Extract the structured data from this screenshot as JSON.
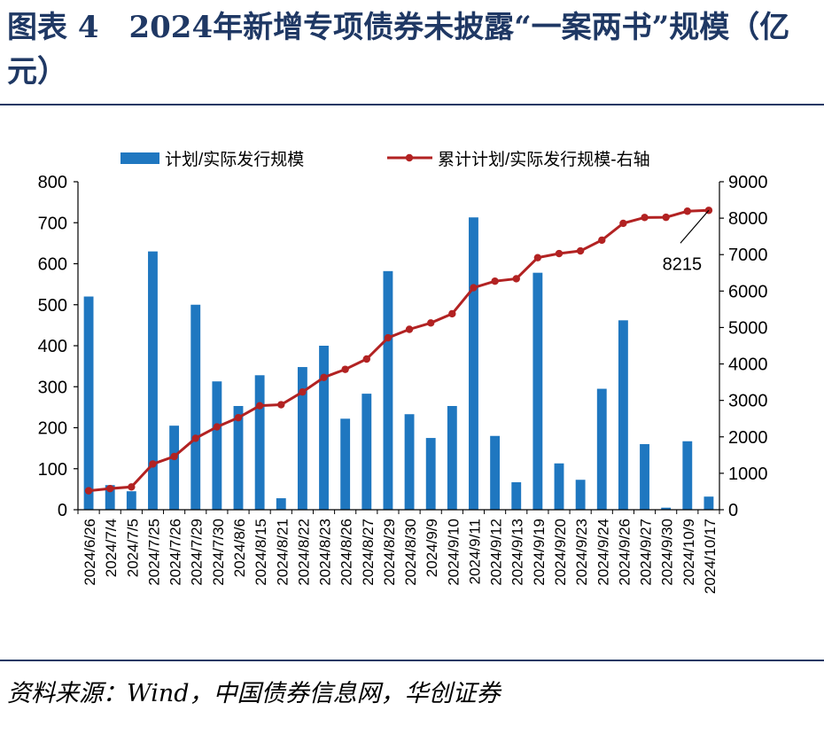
{
  "figure": {
    "title": "图表 4　2024年新增专项债券未披露“一案两书”规模（亿元）",
    "source": "资料来源：Wind，中国债券信息网，华创证券"
  },
  "chart_data": {
    "type": "bar+line",
    "categories": [
      "2024/6/26",
      "2024/7/4",
      "2024/7/5",
      "2024/7/25",
      "2024/7/26",
      "2024/7/29",
      "2024/7/30",
      "2024/8/6",
      "2024/8/15",
      "2024/8/21",
      "2024/8/22",
      "2024/8/23",
      "2024/8/26",
      "2024/8/27",
      "2024/8/29",
      "2024/8/30",
      "2024/9/9",
      "2024/9/10",
      "2024/9/11",
      "2024/9/12",
      "2024/9/13",
      "2024/9/19",
      "2024/9/20",
      "2024/9/23",
      "2024/9/24",
      "2024/9/26",
      "2024/9/27",
      "2024/9/30",
      "2024/10/9",
      "2024/10/17"
    ],
    "series": [
      {
        "name": "计划/实际发行规模",
        "type": "bar",
        "axis": "left",
        "color": "#1f77c0",
        "values": [
          520,
          60,
          45,
          630,
          205,
          500,
          313,
          253,
          328,
          28,
          348,
          400,
          222,
          283,
          582,
          233,
          175,
          253,
          713,
          180,
          67,
          578,
          113,
          73,
          295,
          462,
          160,
          5,
          167,
          32
        ]
      },
      {
        "name": "累计计划/实际发行规模-右轴",
        "type": "line",
        "axis": "right",
        "color": "#b22222",
        "values": [
          520,
          580,
          625,
          1255,
          1460,
          1960,
          2273,
          2526,
          2854,
          2882,
          3230,
          3630,
          3852,
          4135,
          4717,
          4950,
          5125,
          5378,
          6091,
          6271,
          6338,
          6916,
          7029,
          7102,
          7397,
          7859,
          8019,
          8024,
          8191,
          8215
        ]
      }
    ],
    "y_left": {
      "min": 0,
      "max": 800,
      "ticks": [
        "0",
        "100",
        "200",
        "300",
        "400",
        "500",
        "600",
        "700",
        "800"
      ]
    },
    "y_right": {
      "min": 0,
      "max": 9000,
      "ticks": [
        "0",
        "1000",
        "2000",
        "3000",
        "4000",
        "5000",
        "6000",
        "7000",
        "8000",
        "9000"
      ]
    },
    "annotation": {
      "text": "8215",
      "target_index": 29
    },
    "legend_position": "top",
    "grid": false
  }
}
